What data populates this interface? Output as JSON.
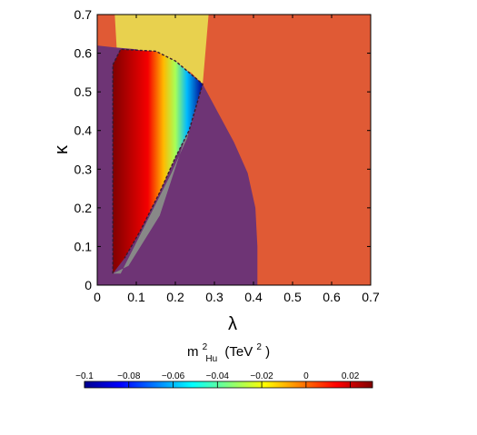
{
  "chart_data": {
    "type": "heatmap",
    "title": "",
    "xlabel": "λ",
    "ylabel": "κ",
    "xlim": [
      0,
      0.7
    ],
    "ylim": [
      0,
      0.7
    ],
    "x_ticks": [
      "0",
      "0.1",
      "0.2",
      "0.3",
      "0.4",
      "0.5",
      "0.6",
      "0.7"
    ],
    "y_ticks": [
      "0",
      "0.1",
      "0.2",
      "0.3",
      "0.4",
      "0.5",
      "0.6",
      "0.7"
    ],
    "colorbar": {
      "label_main": "m",
      "label_sup": "2",
      "label_sub": "Hu",
      "label_unit_open": "(TeV",
      "label_unit_sup": "2",
      "label_unit_close": ")",
      "range": [
        -0.1,
        0.03
      ],
      "ticks": [
        "−0.1",
        "−0.08",
        "−0.06",
        "−0.04",
        "−0.02",
        "0",
        "0.02"
      ]
    },
    "regions": [
      {
        "color": "#e05a35",
        "polygon": [
          [
            0,
            0
          ],
          [
            0.7,
            0
          ],
          [
            0.7,
            0.7
          ],
          [
            0,
            0.7
          ]
        ]
      },
      {
        "color": "#e8d14e",
        "polygon": [
          [
            0.045,
            0.7
          ],
          [
            0.285,
            0.7
          ],
          [
            0.27,
            0.52
          ],
          [
            0.24,
            0.55
          ],
          [
            0.16,
            0.59
          ],
          [
            0.05,
            0.61
          ]
        ]
      },
      {
        "color": "#6e3475",
        "polygon": [
          [
            0,
            0
          ],
          [
            0.41,
            0
          ],
          [
            0.41,
            0.1
          ],
          [
            0.405,
            0.2
          ],
          [
            0.385,
            0.29
          ],
          [
            0.35,
            0.37
          ],
          [
            0.31,
            0.445
          ],
          [
            0.27,
            0.52
          ],
          [
            0.2,
            0.58
          ],
          [
            0.1,
            0.61
          ],
          [
            0.045,
            0.615
          ],
          [
            0,
            0.62
          ]
        ]
      },
      {
        "color": "#888888",
        "polygon": [
          [
            0.04,
            0.03
          ],
          [
            0.06,
            0.03
          ],
          [
            0.14,
            0.19
          ],
          [
            0.19,
            0.29
          ],
          [
            0.23,
            0.38
          ],
          [
            0.27,
            0.52
          ],
          [
            0.16,
            0.18
          ],
          [
            0.08,
            0.05
          ]
        ]
      }
    ],
    "gradient_region": {
      "polygon": [
        [
          0.04,
          0.03
        ],
        [
          0.04,
          0.57
        ],
        [
          0.06,
          0.61
        ],
        [
          0.15,
          0.605
        ],
        [
          0.2,
          0.58
        ],
        [
          0.27,
          0.52
        ],
        [
          0.235,
          0.4
        ],
        [
          0.2,
          0.33
        ],
        [
          0.16,
          0.24
        ],
        [
          0.11,
          0.14
        ],
        [
          0.07,
          0.07
        ]
      ],
      "stops": [
        {
          "x": 0.04,
          "value": 0.03
        },
        {
          "x": 0.13,
          "value": 0.015
        },
        {
          "x": 0.17,
          "value": -0.01
        },
        {
          "x": 0.2,
          "value": -0.03
        },
        {
          "x": 0.23,
          "value": -0.06
        },
        {
          "x": 0.27,
          "value": -0.1
        }
      ]
    }
  }
}
